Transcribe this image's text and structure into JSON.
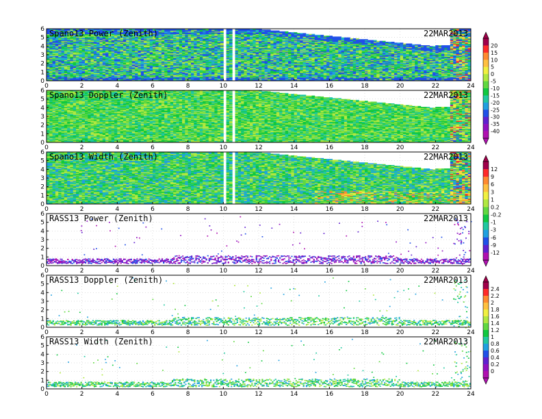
{
  "chart_data": [
    {
      "type": "heatmap",
      "title": "Spano13 Power (Zenith)",
      "date": "22MAR2013",
      "x": {
        "range": [
          0,
          24
        ],
        "ticks": [
          0,
          2,
          4,
          6,
          8,
          10,
          12,
          14,
          16,
          18,
          20,
          22,
          24
        ]
      },
      "y": {
        "range": [
          0,
          6
        ],
        "ticks": [
          0,
          1,
          2,
          3,
          4,
          5,
          6
        ]
      },
      "colorbar": "power",
      "mode": "dense",
      "variant": "power",
      "gaps": [
        10,
        10.9
      ]
    },
    {
      "type": "heatmap",
      "title": "Spano13 Doppler (Zenith)",
      "date": "22MAR2013",
      "x": {
        "range": [
          0,
          24
        ],
        "ticks": [
          0,
          2,
          4,
          6,
          8,
          10,
          12,
          14,
          16,
          18,
          20,
          22,
          24
        ]
      },
      "y": {
        "range": [
          0,
          6
        ],
        "ticks": [
          0,
          1,
          2,
          3,
          4,
          5,
          6
        ]
      },
      "colorbar": "power",
      "mode": "dense",
      "variant": "doppler",
      "gaps": [
        10,
        10.9
      ]
    },
    {
      "type": "heatmap",
      "title": "Spano13 Width (Zenith)",
      "date": "22MAR2013",
      "x": {
        "range": [
          0,
          24
        ],
        "ticks": [
          0,
          2,
          4,
          6,
          8,
          10,
          12,
          14,
          16,
          18,
          20,
          22,
          24
        ]
      },
      "y": {
        "range": [
          0,
          6
        ],
        "ticks": [
          0,
          1,
          2,
          3,
          4,
          5,
          6
        ]
      },
      "colorbar": "width",
      "mode": "dense",
      "variant": "width",
      "gaps": [
        10,
        10.9
      ]
    },
    {
      "type": "scatter",
      "title": "RASS13 Power (Zenith)",
      "date": "22MAR2013",
      "x": {
        "range": [
          0,
          24
        ],
        "ticks": [
          0,
          2,
          4,
          6,
          8,
          10,
          12,
          14,
          16,
          18,
          20,
          22,
          24
        ]
      },
      "y": {
        "range": [
          0,
          6
        ],
        "ticks": [
          0,
          1,
          2,
          3,
          4,
          5,
          6
        ]
      },
      "colorbar": "width",
      "mode": "sparse",
      "variant": "rasspower"
    },
    {
      "type": "scatter",
      "title": "RASS13 Doppler (Zenith)",
      "date": "22MAR2013",
      "x": {
        "range": [
          0,
          24
        ],
        "ticks": [
          0,
          2,
          4,
          6,
          8,
          10,
          12,
          14,
          16,
          18,
          20,
          22,
          24
        ]
      },
      "y": {
        "range": [
          0,
          6
        ],
        "ticks": [
          0,
          1,
          2,
          3,
          4,
          5,
          6
        ]
      },
      "colorbar": "rass",
      "mode": "sparse",
      "variant": "rassdoppler"
    },
    {
      "type": "scatter",
      "title": "RASS13 Width (Zenith)",
      "date": "22MAR2013",
      "x": {
        "range": [
          0,
          24
        ],
        "ticks": [
          0,
          2,
          4,
          6,
          8,
          10,
          12,
          14,
          16,
          18,
          20,
          22,
          24
        ]
      },
      "y": {
        "range": [
          0,
          6
        ],
        "ticks": [
          0,
          1,
          2,
          3,
          4,
          5,
          6
        ]
      },
      "colorbar": "rass",
      "mode": "sparse",
      "variant": "rasswidth"
    }
  ],
  "colorbars": {
    "power": {
      "labels": [
        "20",
        "15",
        "10",
        "5",
        "0",
        "-5",
        "-10",
        "-15",
        "-20",
        "-25",
        "-30",
        "-35",
        "-40"
      ],
      "colors": [
        "#a0004a",
        "#ff2a2a",
        "#ff8a30",
        "#ffc040",
        "#f0f040",
        "#b0e840",
        "#60d840",
        "#10c840",
        "#20c8a0",
        "#20a0e0",
        "#2050e8",
        "#6020d0",
        "#9010c0",
        "#b010b0"
      ]
    },
    "width": {
      "labels": [
        "12",
        "9",
        "6",
        "3",
        "1",
        "0.2",
        "-0.2",
        "-1",
        "-3",
        "-6",
        "-9",
        "-12"
      ],
      "colors": [
        "#a0004a",
        "#ff2a2a",
        "#ff8a30",
        "#ffc040",
        "#f0f040",
        "#b0e840",
        "#60d840",
        "#10c840",
        "#20c8a0",
        "#20a0e0",
        "#2050e8",
        "#6020d0",
        "#b010b0"
      ]
    },
    "rass": {
      "labels": [
        "2.4",
        "2.2",
        "2",
        "1.8",
        "1.6",
        "1.4",
        "1.2",
        "1",
        "0.8",
        "0.6",
        "0.4",
        "0.2",
        "0"
      ],
      "colors": [
        "#a0004a",
        "#ff2a2a",
        "#ff8a30",
        "#ffc040",
        "#f0f040",
        "#b0e840",
        "#60d840",
        "#10c840",
        "#20c8a0",
        "#20a0e0",
        "#2050e8",
        "#6020d0",
        "#9010c0",
        "#b010b0"
      ]
    }
  }
}
